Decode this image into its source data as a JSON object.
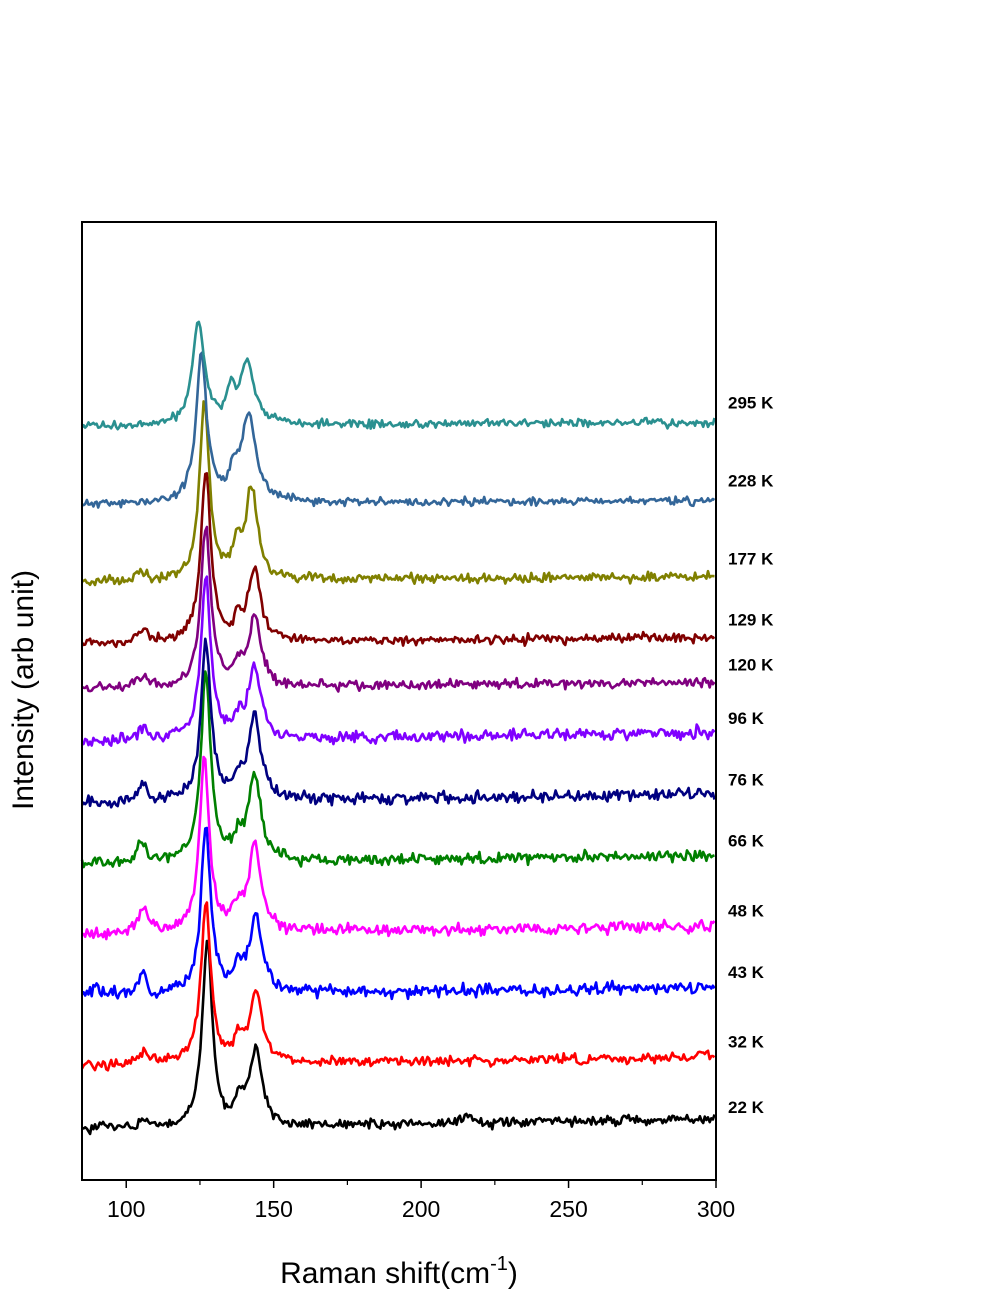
{
  "chart_data": {
    "type": "line",
    "title": "",
    "xlabel": "Raman shift(cm",
    "xlabel_sup": "-1",
    "xlabel_end": ")",
    "ylabel": "Intensity (arb unit)",
    "xlim": [
      85,
      300
    ],
    "xticks": [
      100,
      150,
      200,
      250,
      300
    ],
    "xtick_labels": [
      "100",
      "150",
      "200",
      "250",
      "300"
    ],
    "y_ticks_shown": false,
    "grid": false,
    "legend": "none",
    "series": [
      {
        "name": "22 K",
        "color": "#000000",
        "baseline": 0.1,
        "amp": 2.3,
        "peaks": [
          [
            127.5,
            2.0,
            2.3
          ],
          [
            144,
            2.5,
            0.95
          ],
          [
            138.5,
            1.5,
            0.3
          ],
          [
            106,
            2.0,
            0.12
          ],
          [
            92,
            1.5,
            0.08
          ],
          [
            216,
            1.5,
            0.1
          ]
        ],
        "slope": 0.15,
        "noise": 0.06,
        "seed": 1
      },
      {
        "name": "32 K",
        "color": "#ff0000",
        "baseline": 0.9,
        "amp": 1.95,
        "peaks": [
          [
            127.0,
            2.0,
            1.95
          ],
          [
            144,
            2.5,
            0.85
          ],
          [
            138.0,
            1.5,
            0.25
          ],
          [
            106,
            2.0,
            0.15
          ],
          [
            296,
            1.0,
            0.1
          ]
        ],
        "slope": 0.1,
        "noise": 0.06,
        "seed": 2
      },
      {
        "name": "43 K",
        "color": "#0000ff",
        "baseline": 1.75,
        "amp": 2.05,
        "peaks": [
          [
            127.0,
            2.0,
            2.05
          ],
          [
            144,
            2.5,
            0.95
          ],
          [
            138.0,
            1.5,
            0.3
          ],
          [
            105.5,
            1.5,
            0.25
          ],
          [
            90,
            1.0,
            0.15
          ]
        ],
        "slope": 0.1,
        "noise": 0.07,
        "seed": 3
      },
      {
        "name": "48 K",
        "color": "#ff00ff",
        "baseline": 2.5,
        "amp": 2.1,
        "peaks": [
          [
            126.5,
            2.0,
            2.1
          ],
          [
            143.5,
            2.5,
            1.05
          ],
          [
            137.5,
            1.5,
            0.25
          ],
          [
            106,
            2.0,
            0.3
          ]
        ],
        "slope": 0.1,
        "noise": 0.07,
        "seed": 4
      },
      {
        "name": "66 K",
        "color": "#008000",
        "baseline": 3.35,
        "amp": 2.3,
        "peaks": [
          [
            127.0,
            2.0,
            2.3
          ],
          [
            143.5,
            2.5,
            1.05
          ],
          [
            138.0,
            1.5,
            0.25
          ],
          [
            105,
            2.0,
            0.25
          ]
        ],
        "slope": 0.12,
        "noise": 0.07,
        "seed": 5
      },
      {
        "name": "76 K",
        "color": "#000080",
        "baseline": 4.1,
        "amp": 1.95,
        "peaks": [
          [
            127.0,
            2.0,
            1.95
          ],
          [
            143.5,
            2.5,
            1.05
          ],
          [
            138.0,
            1.5,
            0.2
          ],
          [
            106,
            2.0,
            0.2
          ]
        ],
        "slope": 0.12,
        "noise": 0.07,
        "seed": 6
      },
      {
        "name": "96 K",
        "color": "#8000ff",
        "baseline": 4.85,
        "amp": 2.0,
        "peaks": [
          [
            127.0,
            2.0,
            2.0
          ],
          [
            143.5,
            2.5,
            0.9
          ],
          [
            138.0,
            1.5,
            0.2
          ],
          [
            106,
            2.0,
            0.18
          ]
        ],
        "slope": 0.12,
        "noise": 0.07,
        "seed": 7
      },
      {
        "name": "120 K",
        "color": "#800080",
        "baseline": 5.5,
        "amp": 1.95,
        "peaks": [
          [
            127.0,
            2.0,
            1.95
          ],
          [
            143.5,
            2.5,
            0.85
          ],
          [
            138.0,
            1.5,
            0.2
          ],
          [
            106,
            2.0,
            0.12
          ]
        ],
        "slope": 0.08,
        "noise": 0.06,
        "seed": 8
      },
      {
        "name": "129 K",
        "color": "#800000",
        "baseline": 6.05,
        "amp": 2.1,
        "peaks": [
          [
            127.0,
            2.0,
            2.1
          ],
          [
            143.5,
            2.5,
            0.85
          ],
          [
            138.0,
            1.5,
            0.2
          ],
          [
            106,
            2.0,
            0.15
          ]
        ],
        "slope": 0.08,
        "noise": 0.06,
        "seed": 9
      },
      {
        "name": "177 K",
        "color": "#808000",
        "baseline": 6.8,
        "amp": 2.15,
        "peaks": [
          [
            126.5,
            2.0,
            2.15
          ],
          [
            142.5,
            2.5,
            1.1
          ],
          [
            137.5,
            1.5,
            0.35
          ],
          [
            105,
            2.0,
            0.12
          ]
        ],
        "slope": 0.07,
        "noise": 0.06,
        "seed": 10
      },
      {
        "name": "228 K",
        "color": "#336699",
        "baseline": 7.75,
        "amp": 1.8,
        "peaks": [
          [
            125.5,
            2.2,
            1.8
          ],
          [
            141.5,
            3.0,
            1.05
          ],
          [
            136.5,
            1.5,
            0.3
          ]
        ],
        "slope": 0.05,
        "noise": 0.05,
        "seed": 11
      },
      {
        "name": "295 K",
        "color": "#2a9090",
        "baseline": 8.7,
        "amp": 1.25,
        "peaks": [
          [
            124.5,
            2.5,
            1.25
          ],
          [
            141.0,
            3.0,
            0.75
          ],
          [
            135.5,
            1.5,
            0.35
          ]
        ],
        "slope": 0.05,
        "noise": 0.05,
        "seed": 12
      }
    ]
  }
}
